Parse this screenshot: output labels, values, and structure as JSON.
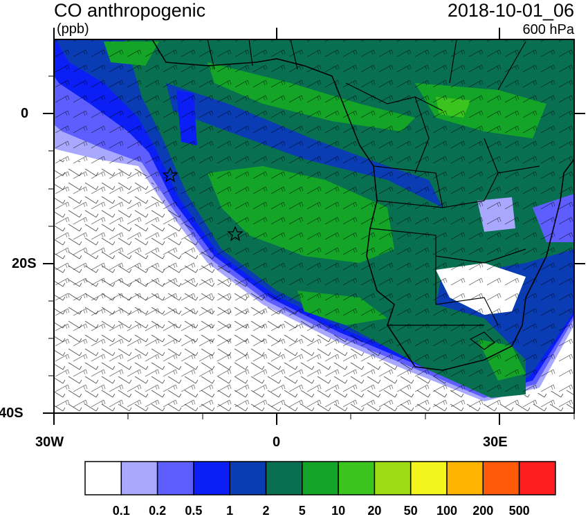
{
  "header": {
    "title": "CO anthropogenic",
    "units": "(ppb)",
    "date": "2018-10-01_06",
    "level": "600 hPa"
  },
  "axes": {
    "y_ticks": [
      "0",
      "20S",
      "40S"
    ],
    "x_ticks": [
      "30W",
      "0",
      "30E"
    ]
  },
  "colorbar": {
    "colors": [
      "#ffffff",
      "#a8a8ff",
      "#5e5eff",
      "#0a1ef5",
      "#0a3cb4",
      "#087050",
      "#14a528",
      "#3cc41e",
      "#a0dc14",
      "#f5f51e",
      "#ffb400",
      "#ff5a0a",
      "#ff1e1e"
    ],
    "labels": [
      "0.1",
      "0.2",
      "0.5",
      "1",
      "2",
      "5",
      "10",
      "20",
      "50",
      "100",
      "200",
      "500"
    ]
  },
  "map": {
    "colors": {
      "white": "#ffffff",
      "light_blue": "#a8a8ff",
      "mid_blue": "#5e5eff",
      "blue": "#0a1ef5",
      "dark_blue": "#0a3cb4",
      "dark_green": "#087050",
      "green": "#14a528",
      "light_green": "#3cc41e",
      "yellow_green": "#a0dc14"
    },
    "markers": [
      "star",
      "star"
    ]
  }
}
